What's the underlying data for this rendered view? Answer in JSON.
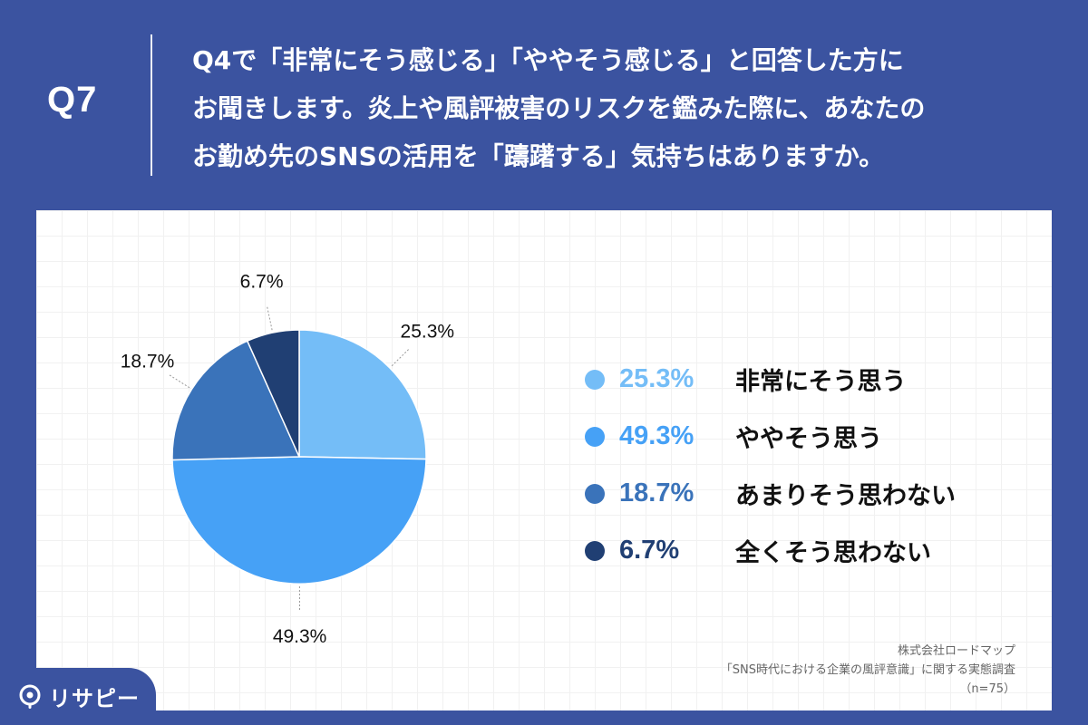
{
  "question": {
    "number": "Q7",
    "lines": [
      "Q4で「非常にそう感じる」「ややそう感じる」と回答した方に",
      "お聞きします。炎上や風評被害のリスクを鑑みた際に、あなたの",
      "お勤め先のSNSの活用を「躊躇する」気持ちはありますか。"
    ]
  },
  "chart_data": {
    "type": "pie",
    "categories": [
      "非常にそう思う",
      "ややそう思う",
      "あまりそう思わない",
      "全くそう思わない"
    ],
    "values": [
      25.3,
      49.3,
      18.7,
      6.7
    ],
    "labels": [
      "25.3%",
      "49.3%",
      "18.7%",
      "6.7%"
    ],
    "colors": [
      "#74bdf7",
      "#46a1f6",
      "#3a73ba",
      "#203f73"
    ],
    "unit": "%",
    "legend_position": "right"
  },
  "legend": [
    {
      "pct": "25.3%",
      "label": "非常にそう思う",
      "color": "#74bdf7"
    },
    {
      "pct": "49.3%",
      "label": "ややそう思う",
      "color": "#46a1f6"
    },
    {
      "pct": "18.7%",
      "label": "あまりそう思わない",
      "color": "#3a73ba"
    },
    {
      "pct": "6.7%",
      "label": "全くそう思わない",
      "color": "#203f73"
    }
  ],
  "source": {
    "company": "株式会社ロードマップ",
    "survey": "「SNS時代における企業の風評意識」に関する実態調査",
    "sample": "（n=75）"
  },
  "logo": {
    "text": "リサピー",
    "icon": "pin-icon"
  },
  "colors": {
    "background": "#3b53a0",
    "card": "#ffffff"
  }
}
